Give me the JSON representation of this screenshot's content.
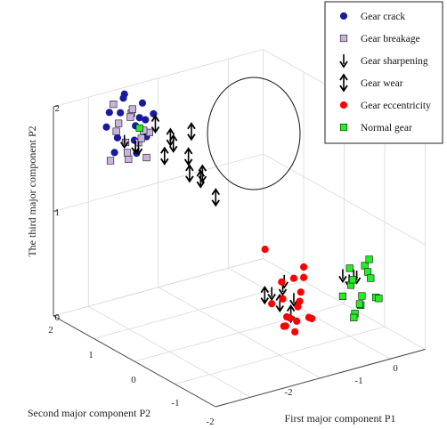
{
  "chart_data": {
    "type": "scatter",
    "projection": "3d",
    "grid": true,
    "legend_position": "top-right",
    "axes": {
      "x": {
        "label": "First major component P1",
        "ticks": [
          "-2",
          "-1",
          "0"
        ],
        "range": [
          -2.5,
          0.5
        ]
      },
      "y": {
        "label": "Second major component P2",
        "ticks": [
          "-2",
          "-1",
          "0",
          "1",
          "2"
        ],
        "range": [
          -2,
          2
        ]
      },
      "z": {
        "label": "The third major component P2",
        "ticks": [
          "0",
          "1",
          "2"
        ],
        "range": [
          0,
          2
        ]
      }
    },
    "series": [
      {
        "name": "Gear crack",
        "marker": "circle",
        "color": "#1a1aa0",
        "points": [
          [
            -1.7,
            1.8,
            1.6
          ],
          [
            -1.5,
            1.7,
            1.7
          ],
          [
            -1.6,
            1.9,
            1.8
          ],
          [
            -1.4,
            1.6,
            1.6
          ],
          [
            -1.8,
            1.7,
            1.5
          ],
          [
            -1.5,
            2.0,
            1.9
          ],
          [
            -1.3,
            1.8,
            1.7
          ],
          [
            -1.6,
            1.5,
            1.5
          ],
          [
            -1.7,
            2.0,
            1.8
          ],
          [
            -1.4,
            1.9,
            1.5
          ],
          [
            -1.5,
            1.6,
            1.8
          ],
          [
            -1.8,
            1.9,
            1.7
          ],
          [
            -1.3,
            1.6,
            1.8
          ],
          [
            -1.6,
            1.8,
            2.0
          ],
          [
            -1.4,
            1.7,
            1.9
          ]
        ]
      },
      {
        "name": "Gear breakage",
        "marker": "square",
        "color": "#c7b3dc",
        "points": [
          [
            -1.6,
            1.7,
            1.4
          ],
          [
            -1.4,
            1.8,
            1.5
          ],
          [
            -1.7,
            1.6,
            1.6
          ],
          [
            -1.5,
            1.9,
            1.4
          ],
          [
            -1.3,
            1.7,
            1.6
          ],
          [
            -1.8,
            1.8,
            1.4
          ],
          [
            -1.5,
            1.5,
            1.7
          ],
          [
            -1.6,
            2.0,
            1.6
          ],
          [
            -1.4,
            1.6,
            1.4
          ],
          [
            -1.7,
            1.9,
            1.9
          ],
          [
            -1.3,
            1.9,
            1.5
          ],
          [
            -1.5,
            1.8,
            1.8
          ],
          [
            -1.6,
            1.6,
            1.9
          ],
          [
            -1.4,
            2.0,
            1.7
          ],
          [
            -1.8,
            1.6,
            1.8
          ]
        ]
      },
      {
        "name": "Gear sharpening",
        "marker": "arrow-down",
        "color": "#000000",
        "points": [
          [
            -1.5,
            1.7,
            1.5
          ],
          [
            -1.4,
            1.8,
            1.45
          ],
          [
            -1.6,
            1.8,
            1.55
          ],
          [
            -0.9,
            -0.9,
            0.6
          ],
          [
            -0.8,
            -1.0,
            0.5
          ],
          [
            -1.0,
            -0.8,
            0.55
          ],
          [
            -0.85,
            -0.85,
            0.65
          ],
          [
            0.0,
            -1.1,
            0.6
          ],
          [
            0.1,
            -1.0,
            0.55
          ],
          [
            -0.1,
            -1.0,
            0.6
          ],
          [
            0.05,
            -0.9,
            0.5
          ]
        ]
      },
      {
        "name": "Gear wear",
        "marker": "double-arrow",
        "color": "#000000",
        "points": [
          [
            -1.0,
            1.7,
            1.5
          ],
          [
            -0.9,
            1.8,
            1.4
          ],
          [
            -1.1,
            1.9,
            1.6
          ],
          [
            -0.8,
            1.6,
            1.3
          ],
          [
            -1.2,
            1.5,
            1.4
          ],
          [
            -0.7,
            1.7,
            1.5
          ],
          [
            -0.9,
            1.4,
            1.2
          ],
          [
            -0.6,
            1.6,
            1.1
          ],
          [
            -0.8,
            1.3,
            1.15
          ],
          [
            -0.7,
            1.1,
            1.0
          ],
          [
            -1.1,
            -0.8,
            0.55
          ],
          [
            -1.0,
            -1.0,
            0.5
          ],
          [
            -0.9,
            -1.1,
            0.4
          ]
        ]
      },
      {
        "name": "Gear eccentricity",
        "marker": "circle",
        "color": "#ff0000",
        "points": [
          [
            -0.4,
            0.4,
            0.6
          ],
          [
            -0.6,
            -0.9,
            0.65
          ],
          [
            -0.8,
            -0.7,
            0.6
          ],
          [
            -0.7,
            -1.0,
            0.55
          ],
          [
            -0.9,
            -0.9,
            0.5
          ],
          [
            -0.8,
            -1.1,
            0.45
          ],
          [
            -0.6,
            -0.8,
            0.4
          ],
          [
            -1.0,
            -0.8,
            0.45
          ],
          [
            -0.7,
            -1.2,
            0.35
          ],
          [
            -0.9,
            -1.0,
            0.35
          ],
          [
            -0.8,
            -0.9,
            0.3
          ],
          [
            -0.6,
            -1.1,
            0.3
          ],
          [
            -1.0,
            -1.1,
            0.3
          ],
          [
            -0.7,
            -0.9,
            0.25
          ],
          [
            -0.9,
            -1.2,
            0.25
          ],
          [
            -0.8,
            -0.8,
            0.2
          ],
          [
            -0.6,
            -0.9,
            0.75
          ],
          [
            -0.8,
            -1.0,
            0.7
          ]
        ]
      },
      {
        "name": "Normal gear",
        "marker": "square",
        "color": "#22ee22",
        "points": [
          [
            -1.5,
            1.6,
            1.7
          ],
          [
            0.1,
            -1.2,
            0.7
          ],
          [
            0.0,
            -1.0,
            0.65
          ],
          [
            0.2,
            -1.1,
            0.6
          ],
          [
            -0.1,
            -1.2,
            0.55
          ],
          [
            0.1,
            -0.9,
            0.5
          ],
          [
            0.3,
            -1.0,
            0.5
          ],
          [
            0.0,
            -1.3,
            0.45
          ],
          [
            0.2,
            -1.3,
            0.4
          ],
          [
            -0.1,
            -1.0,
            0.4
          ],
          [
            0.3,
            -1.2,
            0.35
          ],
          [
            0.1,
            -1.1,
            0.3
          ],
          [
            -0.1,
            -1.3,
            0.3
          ],
          [
            0.2,
            -0.9,
            0.25
          ],
          [
            0.0,
            -1.1,
            0.2
          ],
          [
            0.25,
            -1.05,
            0.7
          ]
        ]
      }
    ]
  }
}
